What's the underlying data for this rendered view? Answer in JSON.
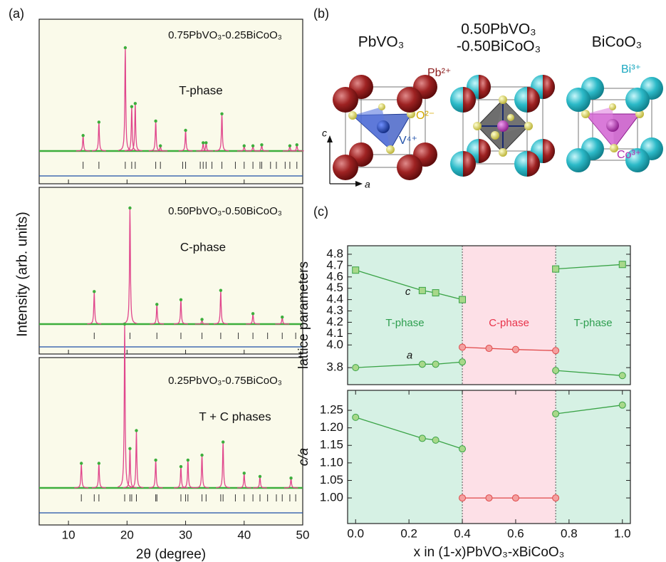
{
  "panel_labels": [
    "(a)",
    "(b)",
    "(c)"
  ],
  "structures": {
    "titles": [
      [
        "PbVO₃"
      ],
      [
        "0.50PbVO₃",
        "-0.50BiCoO₃"
      ],
      [
        "BiCoO₃"
      ]
    ],
    "ions": [
      "Pb²⁺",
      "O²⁻",
      "V⁴⁺",
      "Bi³⁺",
      "Co³⁺"
    ],
    "axes": [
      "c",
      "a"
    ]
  },
  "chart_data": [
    {
      "type": "xrd",
      "xlabel": "2θ (degree)",
      "ylabel": "Intensity (arb. units)",
      "xlim": [
        5,
        50
      ],
      "xticks": [
        10,
        20,
        30,
        40,
        50
      ],
      "ylim": [
        0,
        100
      ],
      "observed_color": "#3cae3c",
      "fit_color": "#e0468c",
      "reflection_color": "#333333",
      "difference_color": "#1f4fa8",
      "background": "#fafaea",
      "patterns": [
        {
          "composition": "0.75PbVO₃-0.25BiCoO₃",
          "phase": "T-phase",
          "peaks_2theta": [
            12.5,
            15.2,
            19.7,
            20.8,
            21.4,
            24.9,
            25.7,
            30.0,
            33.0,
            33.5,
            36.2,
            40.0,
            41.5,
            43.0,
            47.8,
            49.0
          ],
          "peaks_intensity": [
            15,
            28,
            100,
            43,
            46,
            29,
            5,
            20,
            8,
            8,
            36,
            5,
            5,
            6,
            5,
            6
          ],
          "reflections": [
            12.5,
            15.2,
            19.7,
            20.8,
            21.4,
            24.9,
            25.7,
            29.5,
            30.0,
            32.5,
            33.0,
            33.5,
            34.5,
            36.2,
            38.5,
            40.0,
            41.5,
            42.7,
            43.0,
            44.5,
            45.5,
            47.0,
            47.8,
            49.0
          ]
        },
        {
          "composition": "0.50PbVO₃-0.50BiCoO₃",
          "phase": "C-phase",
          "peaks_2theta": [
            14.4,
            20.5,
            25.1,
            29.2,
            32.8,
            36.0,
            41.5,
            46.5
          ],
          "peaks_intensity": [
            28,
            100,
            17,
            21,
            4,
            29,
            9,
            6
          ],
          "reflections": [
            14.4,
            20.5,
            25.1,
            29.2,
            32.8,
            36.0,
            39.0,
            41.5,
            44.0,
            46.5,
            48.8
          ]
        },
        {
          "composition": "0.25PbVO₃-0.75BiCoO₃",
          "phase": "T + C phases",
          "peaks_2theta": [
            12.2,
            15.2,
            19.6,
            20.5,
            21.6,
            24.9,
            29.2,
            30.4,
            32.8,
            36.4,
            40.0,
            42.7,
            48.0
          ],
          "peaks_intensity": [
            15,
            15,
            100,
            24,
            35,
            17,
            13,
            17,
            20,
            28,
            9,
            7,
            6
          ],
          "reflections": [
            12.2,
            14.4,
            15.2,
            19.6,
            20.5,
            20.8,
            21.6,
            24.9,
            25.1,
            29.2,
            30.0,
            30.4,
            32.8,
            33.5,
            36.0,
            36.4,
            38.5,
            40.0,
            41.5,
            42.7,
            44.0,
            45.5,
            46.5,
            47.8,
            48.8
          ]
        }
      ]
    },
    {
      "type": "line",
      "ylabel": "lattice parameters",
      "xlim": [
        -0.03,
        1.03
      ],
      "ylim": [
        3.65,
        4.875
      ],
      "yticks": [
        {
          "value": 3.8,
          "label": "3.8"
        },
        {
          "value": 4,
          "label": "4.0"
        },
        4.1,
        4.2,
        4.3,
        4.4,
        4.5,
        4.6,
        4.7,
        4.8
      ],
      "phase_boundaries": [
        0.4,
        0.75
      ],
      "region_colors": [
        "#d6f1e4",
        "#fde0e7",
        "#d6f1e4"
      ],
      "region_labels": [
        "T-phase",
        "C-phase",
        "T-phase"
      ],
      "region_label_colors": [
        "#2e9e4f",
        "#e8334a",
        "#2e9e4f"
      ],
      "series": [
        {
          "name": "c",
          "marker": "square",
          "color": "#3aa346",
          "fill": "#a8d88a",
          "x": [
            0,
            0.25,
            0.3,
            0.4,
            null,
            0.75,
            1
          ],
          "values": [
            4.66,
            4.48,
            4.46,
            4.4,
            null,
            4.67,
            4.71
          ]
        },
        {
          "name": "a",
          "marker": "circle",
          "color": "#3aa346",
          "fill": "#a8d88a",
          "x": [
            0,
            0.25,
            0.3,
            0.4,
            null,
            0.75,
            1
          ],
          "values": [
            3.8,
            3.83,
            3.83,
            3.85,
            null,
            3.775,
            3.73
          ]
        },
        {
          "marker": "circle",
          "color": "#e04848",
          "fill": "#f4a0a0",
          "x": [
            0.4,
            0.5,
            0.6,
            0.75
          ],
          "values": [
            3.98,
            3.97,
            3.96,
            3.95
          ]
        }
      ]
    },
    {
      "type": "line",
      "ylabel": "c/a",
      "xlabel": "x in (1-x)PbVO₃-xBiCoO₃",
      "xlim": [
        -0.03,
        1.03
      ],
      "ylim": [
        0.927,
        1.307
      ],
      "xticks": [
        {
          "value": 0,
          "label": "0.0"
        },
        0.2,
        0.4,
        0.6,
        0.8,
        {
          "value": 1,
          "label": "1.0"
        }
      ],
      "yticks": [
        {
          "value": 1,
          "label": "1.00"
        },
        1.05,
        {
          "value": 1.1,
          "label": "1.10"
        },
        1.15,
        {
          "value": 1.2,
          "label": "1.20"
        },
        1.25
      ],
      "phase_boundaries": [
        0.4,
        0.75
      ],
      "region_colors": [
        "#d6f1e4",
        "#fde0e7",
        "#d6f1e4"
      ],
      "series": [
        {
          "marker": "circle",
          "color": "#3aa346",
          "fill": "#a8d88a",
          "x": [
            0,
            0.25,
            0.3,
            0.4,
            null,
            0.75,
            1
          ],
          "values": [
            1.23,
            1.17,
            1.165,
            1.14,
            null,
            1.24,
            1.265
          ]
        },
        {
          "marker": "circle",
          "color": "#e04848",
          "fill": "#f4a0a0",
          "x": [
            0.4,
            0.5,
            0.6,
            0.75
          ],
          "values": [
            1,
            1,
            1,
            1
          ]
        }
      ]
    }
  ]
}
